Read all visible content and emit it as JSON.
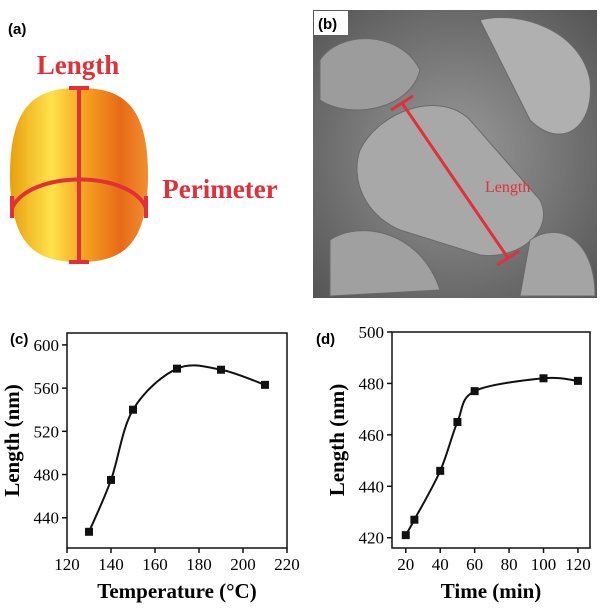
{
  "panels": {
    "a": {
      "label": "(a)",
      "length": "Length",
      "perimeter": "Perimeter"
    },
    "b": {
      "label": "(b)",
      "length": "Length"
    }
  },
  "chart_data": [
    {
      "type": "line",
      "label": "(c)",
      "x_label": "Temperature (°C)",
      "y_label": "Length (nm)",
      "x": [
        130,
        140,
        150,
        170,
        190,
        210
      ],
      "values": [
        427,
        475,
        540,
        578,
        577,
        563
      ],
      "color": "#111111",
      "xlim": [
        120,
        220
      ],
      "xticks": [
        120,
        140,
        160,
        180,
        200,
        220
      ],
      "ylim": [
        412,
        611
      ],
      "yticks": [
        440,
        480,
        520,
        560,
        600
      ]
    },
    {
      "type": "line",
      "label": "(d)",
      "x_label": "Time (min)",
      "y_label": "Length (nm)",
      "x": [
        20,
        25,
        40,
        50,
        60,
        100,
        120
      ],
      "values": [
        421,
        427,
        446,
        465,
        477,
        482,
        481
      ],
      "color": "#111111",
      "xlim": [
        12,
        127
      ],
      "xticks": [
        20,
        40,
        60,
        80,
        100,
        120
      ],
      "ylim": [
        416,
        500
      ],
      "yticks": [
        420,
        440,
        460,
        480,
        500
      ]
    }
  ]
}
